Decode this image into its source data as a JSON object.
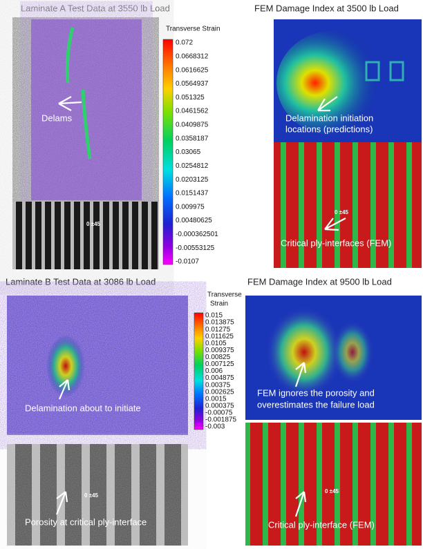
{
  "panels": [
    {
      "title": "Laminate A Test Data at 3550 lb Load",
      "colorbar": {
        "title": [
          "Transverse Strain"
        ],
        "labels": [
          "0.072",
          "0.0668312",
          "0.0616625",
          "0.0564937",
          "0.051325",
          "0.0461562",
          "0.0409875",
          "0.0358187",
          "0.03065",
          "0.0254812",
          "0.0203125",
          "0.0151437",
          "0.009975",
          "0.00480625",
          "-0.000362501",
          "-0.00553125",
          "-0.0107"
        ]
      },
      "annotations": [
        [
          "Delams"
        ]
      ],
      "orientation_label": "0 ±45"
    },
    {
      "title": "FEM Damage Index at 3500 lb Load",
      "annotations": [
        [
          "Delamination initiation",
          "locations (predictions)"
        ],
        [
          "Critical ply-interfaces (FEM)"
        ]
      ],
      "orientation_label": "0 ±45"
    },
    {
      "title": "Laminate B Test Data at 3086 lb Load",
      "colorbar": {
        "title": [
          "Transverse",
          "Strain"
        ],
        "labels": [
          "0.015",
          "0.013875",
          "0.01275",
          "0.011625",
          "0.0105",
          "0.009375",
          "0.00825",
          "0.007125",
          "0.006",
          "0.004875",
          "0.00375",
          "0.002625",
          "0.0015",
          "0.000375",
          "-0.00075",
          "-0.001875",
          "-0.003"
        ]
      },
      "annotations": [
        [
          "Delamination about to initiate"
        ]
      ]
    },
    {
      "title": "FEM Damage Index at 9500 lb Load",
      "annotations": [
        [
          "FEM ignores the porosity and",
          "overestimates the failure load"
        ],
        [
          "Critical ply-interface (FEM)"
        ]
      ],
      "orientation_label": "0 ±45"
    },
    {
      "annotations": [
        [
          "Porosity at critical ply-interface"
        ]
      ],
      "orientation_label": "0 ±45"
    }
  ]
}
